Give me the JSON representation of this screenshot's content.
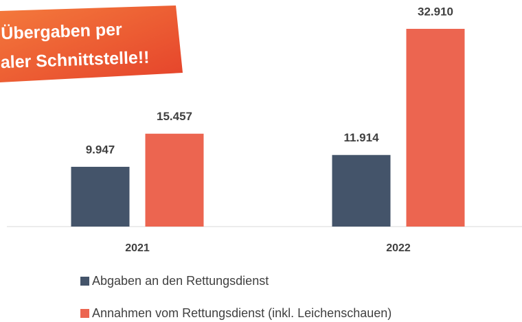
{
  "chart_data": {
    "type": "bar",
    "annotations": [
      "Übergaben per",
      "aler Schnittstelle!!"
    ],
    "categories": [
      "2021",
      "2022"
    ],
    "series": [
      {
        "name": "Abgaben an den Rettungsdienst",
        "color": "#44546a",
        "values": [
          9947,
          11914
        ],
        "value_labels": [
          "9.947",
          "11.914"
        ]
      },
      {
        "name": "Annahmen vom Rettungsdienst (inkl. Leichenschauen)",
        "color": "#ec6550",
        "values": [
          15457,
          32910
        ],
        "value_labels": [
          "15.457",
          "32.910"
        ]
      }
    ]
  }
}
